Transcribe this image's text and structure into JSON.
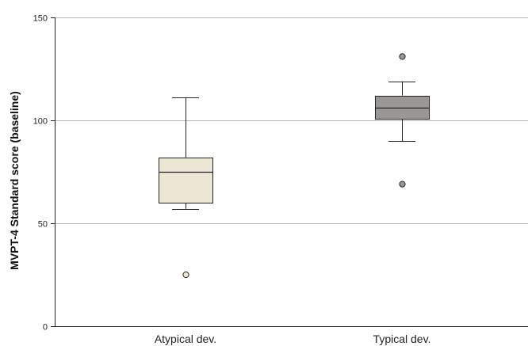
{
  "chart_data": {
    "type": "boxplot",
    "title": "",
    "xlabel": "",
    "ylabel": "MVPT-4 Standard score (baseline)",
    "ylim": [
      0,
      150
    ],
    "yticks": [
      0,
      50,
      100,
      150
    ],
    "grid": "horizontal",
    "categories": [
      "Atypical dev.",
      "Typical dev."
    ],
    "boxes": [
      {
        "category": "Atypical dev.",
        "whisker_low": 57,
        "q1": 60,
        "median": 75,
        "q3": 82,
        "whisker_high": 111,
        "outliers": [
          25
        ],
        "color": "#ece6d5"
      },
      {
        "category": "Typical dev.",
        "whisker_low": 90,
        "q1": 101,
        "median": 106,
        "q3": 112,
        "whisker_high": 119,
        "outliers": [
          69,
          131
        ],
        "color": "#9b9797"
      }
    ]
  }
}
